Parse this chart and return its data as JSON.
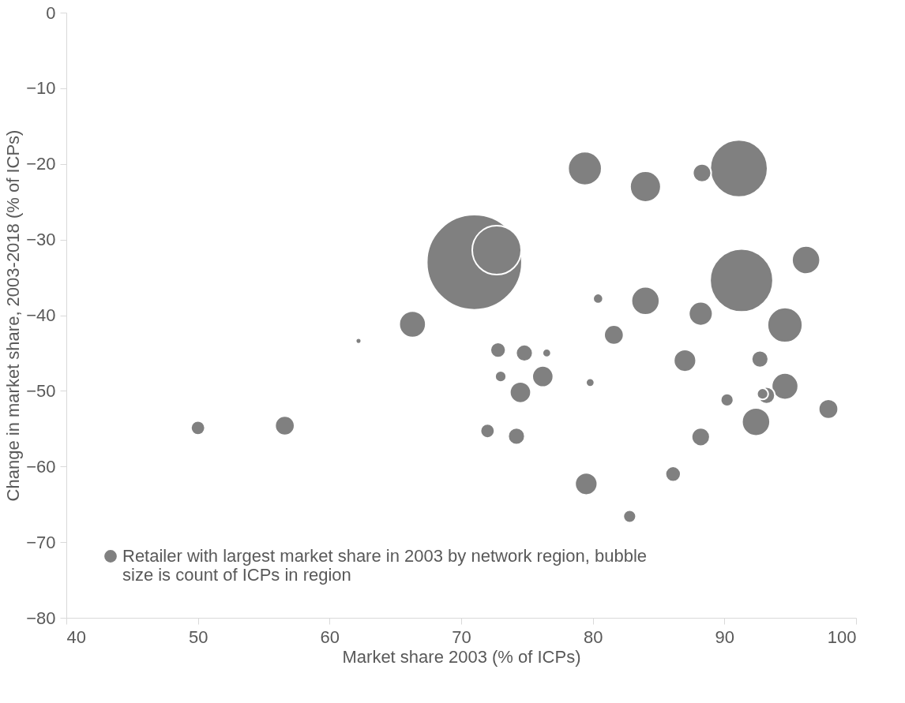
{
  "chart_data": {
    "type": "bubble",
    "xlabel": "Market share 2003 (% of ICPs)",
    "ylabel": "Change in market share, 2003-2018 (% of ICPs)",
    "xlim": [
      40,
      100
    ],
    "xticks": [
      40,
      50,
      60,
      70,
      80,
      90,
      100
    ],
    "ylim": [
      -80,
      0
    ],
    "yticks": [
      -80,
      -70,
      -60,
      -50,
      -40,
      -30,
      -20,
      -10,
      0
    ],
    "grid": false,
    "legend": "bottom left",
    "series": [
      {
        "name": "Retailer with largest market share in 2003 by network region, bubble size is count of ICPs in region",
        "color": "#808080",
        "x": [
          50.0,
          56.6,
          62.2,
          66.3,
          71.0,
          72.7,
          72.8,
          73.0,
          74.8,
          72.0,
          74.5,
          74.2,
          76.5,
          76.2,
          79.5,
          79.4,
          79.8,
          80.4,
          81.6,
          84.0,
          84.0,
          82.8,
          88.2,
          87.0,
          88.2,
          86.1,
          88.3,
          91.1,
          91.3,
          96.2,
          94.6,
          92.7,
          90.2,
          92.9,
          93.2,
          94.6,
          92.4,
          97.9
        ],
        "values": [
          -54.9,
          -54.6,
          -43.4,
          -41.2,
          -33.0,
          -31.4,
          -44.6,
          -48.1,
          -45.0,
          -55.3,
          -50.2,
          -56.0,
          -45.0,
          -48.1,
          -62.3,
          -20.6,
          -48.9,
          -37.8,
          -42.6,
          -38.1,
          -23.0,
          -66.6,
          -56.1,
          -46.0,
          -39.8,
          -61.0,
          -21.2,
          -20.6,
          -35.4,
          -32.7,
          -41.3,
          -45.8,
          -51.2,
          -50.4,
          -50.6,
          -49.4,
          -54.1,
          -52.4
        ],
        "sizes": [
          0.022,
          0.042,
          0.0035,
          0.078,
          1,
          0.265,
          0.026,
          0.014,
          0.031,
          0.022,
          0.049,
          0.031,
          0.008,
          0.049,
          0.055,
          0.125,
          0.008,
          0.011,
          0.042,
          0.087,
          0.105,
          0.018,
          0.037,
          0.055,
          0.0625,
          0.026,
          0.037,
          0.364,
          0.438,
          0.087,
          0.135,
          0.031,
          0.018,
          0.014,
          0.031,
          0.078,
          0.087,
          0.042
        ]
      }
    ]
  }
}
